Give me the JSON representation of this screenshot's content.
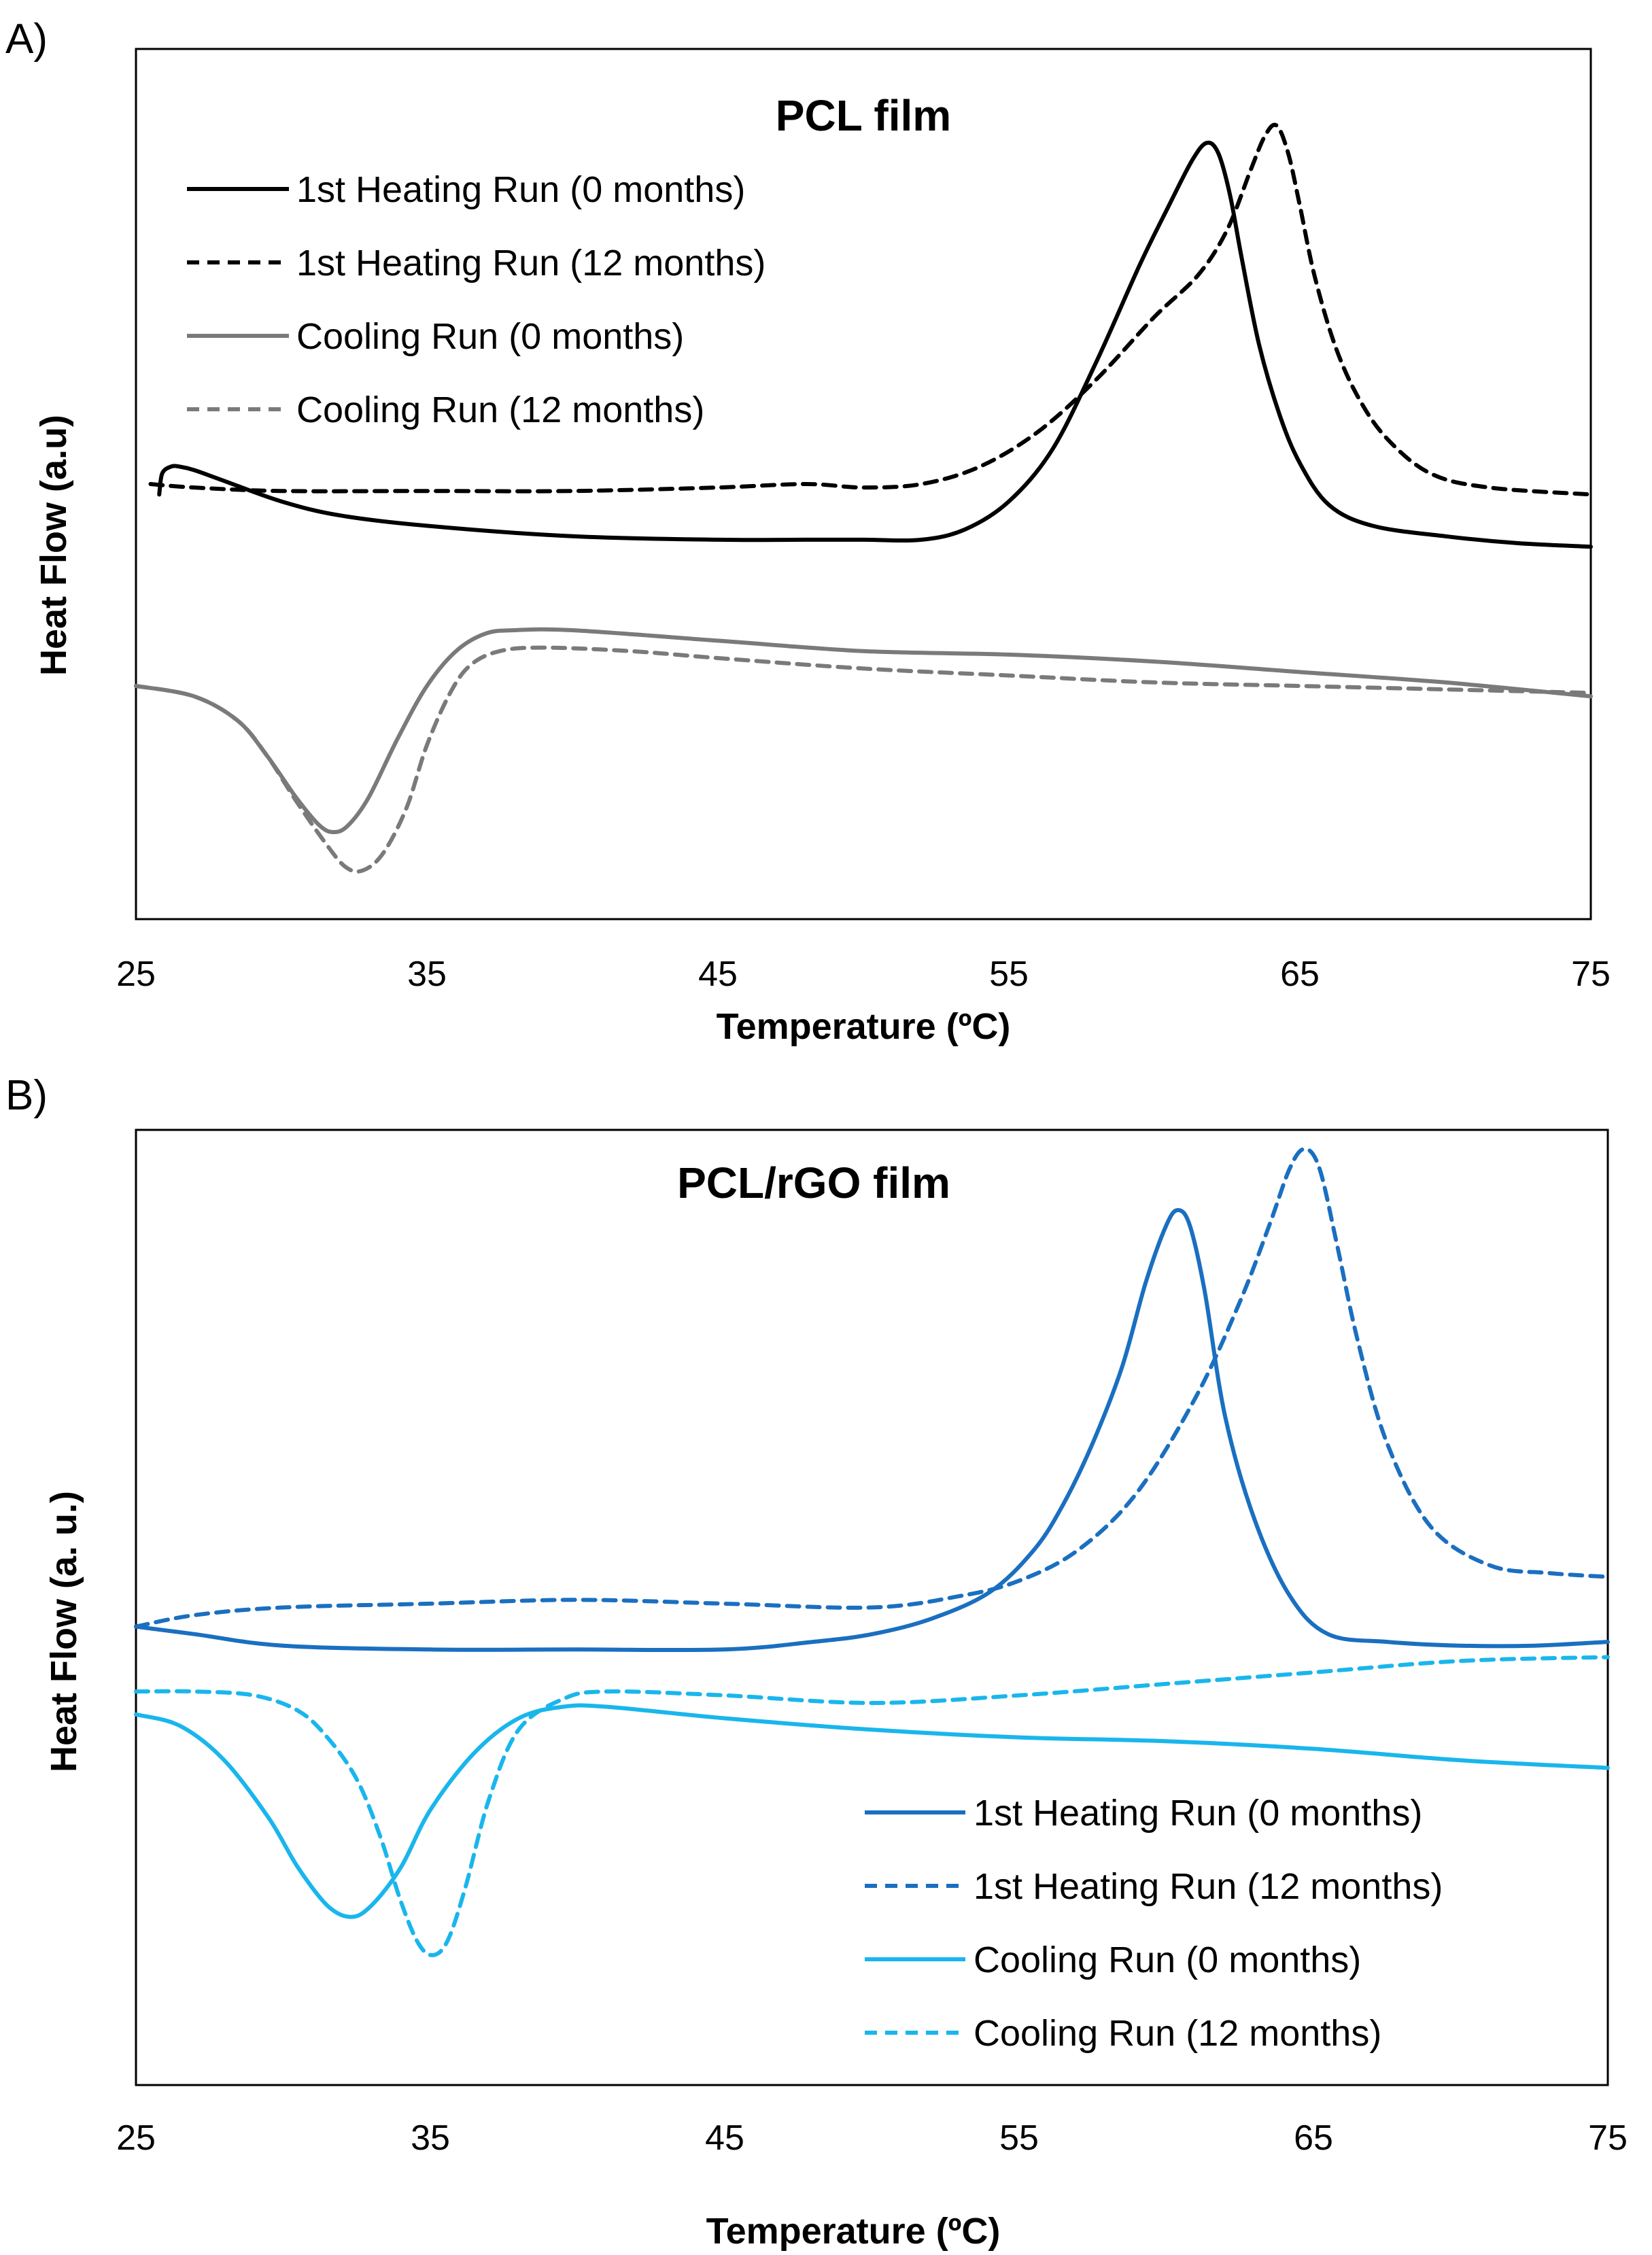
{
  "chart_data": [
    {
      "type": "line",
      "panel_label": "A)",
      "title": "PCL film",
      "xlabel": "Temperature (ºC)",
      "ylabel": "Heat Flow (a.u)",
      "xlim": [
        25,
        75
      ],
      "ylim": [
        -11,
        14
      ],
      "xticks": [
        "25",
        "35",
        "45",
        "55",
        "65",
        "75"
      ],
      "grid": false,
      "legend_position": "top-left",
      "series": [
        {
          "name": "1st Heating Run (0 months)",
          "color": "#000000",
          "dash": "solid",
          "x": [
            25.8,
            25.9,
            26.2,
            26.5,
            27.0,
            28,
            30,
            32,
            35,
            40,
            45,
            48,
            50,
            52,
            53.5,
            55,
            56.5,
            58,
            59.5,
            60.5,
            61.3,
            61.8,
            62.2,
            62.6,
            63.0,
            63.6,
            64.3,
            65.0,
            66.0,
            67.5,
            70,
            72.5,
            75
          ],
          "y": [
            1.2,
            1.8,
            2.0,
            2.0,
            1.9,
            1.6,
            1.0,
            0.6,
            0.3,
            0.0,
            -0.1,
            -0.1,
            -0.1,
            -0.1,
            0.2,
            1.0,
            2.5,
            5.0,
            7.8,
            9.5,
            10.8,
            11.3,
            11.0,
            9.8,
            8.0,
            5.5,
            3.5,
            2.1,
            0.9,
            0.3,
            0.0,
            -0.2,
            -0.3
          ]
        },
        {
          "name": "1st Heating Run (12 months)",
          "color": "#000000",
          "dash": "dashed",
          "x": [
            25.5,
            27,
            30,
            35,
            40,
            45,
            48,
            50,
            52,
            54,
            56,
            58,
            60,
            61.5,
            62.5,
            63.3,
            63.8,
            64.2,
            64.6,
            65.0,
            65.5,
            66.2,
            67.0,
            68.0,
            69.5,
            71.5,
            75
          ],
          "y": [
            1.5,
            1.4,
            1.3,
            1.3,
            1.3,
            1.4,
            1.5,
            1.4,
            1.5,
            2.0,
            3.0,
            4.5,
            6.3,
            7.5,
            8.8,
            10.5,
            11.5,
            11.8,
            11.0,
            9.5,
            7.5,
            5.5,
            4.0,
            2.8,
            1.8,
            1.4,
            1.2
          ]
        },
        {
          "name": "Cooling Run (0 months)",
          "color": "#7a7a7a",
          "dash": "solid",
          "x": [
            25,
            27,
            28.5,
            29.5,
            30.5,
            31.3,
            31.8,
            32.3,
            33,
            34,
            35,
            36,
            37,
            38,
            40,
            45,
            50,
            55,
            60,
            65,
            70,
            75
          ],
          "y": [
            -4.3,
            -4.6,
            -5.3,
            -6.3,
            -7.5,
            -8.3,
            -8.5,
            -8.3,
            -7.5,
            -5.8,
            -4.3,
            -3.3,
            -2.8,
            -2.7,
            -2.7,
            -3.0,
            -3.3,
            -3.4,
            -3.6,
            -3.9,
            -4.2,
            -4.6
          ]
        },
        {
          "name": "Cooling Run (12 months)",
          "color": "#7a7a7a",
          "dash": "dashed",
          "x": [
            25,
            27,
            28.5,
            29.5,
            30.5,
            31.5,
            32.2,
            32.8,
            33.5,
            34.3,
            35,
            35.8,
            36.5,
            37.5,
            39,
            42,
            45,
            50,
            55,
            60,
            65,
            70,
            75
          ],
          "y": [
            -4.3,
            -4.6,
            -5.3,
            -6.3,
            -7.6,
            -8.8,
            -9.5,
            -9.6,
            -9.1,
            -7.8,
            -6.0,
            -4.5,
            -3.7,
            -3.3,
            -3.2,
            -3.3,
            -3.5,
            -3.8,
            -4.0,
            -4.2,
            -4.3,
            -4.4,
            -4.5
          ]
        }
      ]
    },
    {
      "type": "line",
      "panel_label": "B)",
      "title": "PCL/rGO film",
      "xlabel": "Temperature (ºC)",
      "ylabel": "Heat Flow (a. u.)",
      "xlim": [
        25,
        75
      ],
      "ylim": [
        -12,
        13
      ],
      "xticks": [
        "25",
        "35",
        "45",
        "55",
        "65",
        "75"
      ],
      "grid": false,
      "legend_position": "bottom-right",
      "series": [
        {
          "name": "1st Heating Run (0 months)",
          "color": "#1a6fc0",
          "dash": "solid",
          "x": [
            25,
            27,
            30,
            35,
            40,
            45,
            48,
            50,
            52,
            54,
            55.5,
            56.5,
            57.5,
            58.5,
            59.3,
            60.0,
            60.4,
            60.8,
            61.3,
            62.0,
            63.0,
            64.2,
            65.5,
            67.5,
            70,
            72.5,
            75
          ],
          "y": [
            0.0,
            -0.2,
            -0.5,
            -0.6,
            -0.6,
            -0.6,
            -0.4,
            -0.2,
            0.2,
            0.9,
            2.0,
            3.2,
            4.8,
            6.8,
            9.0,
            10.5,
            10.9,
            10.5,
            8.8,
            5.5,
            2.8,
            0.8,
            -0.2,
            -0.4,
            -0.5,
            -0.5,
            -0.4
          ]
        },
        {
          "name": "1st Heating Run (12 months)",
          "color": "#1a6fc0",
          "dash": "dashed",
          "x": [
            25,
            27,
            30,
            35,
            40,
            45,
            50,
            53,
            55,
            57,
            59,
            61,
            62.5,
            63.5,
            64.2,
            64.7,
            65.2,
            65.8,
            66.5,
            67.5,
            69,
            71,
            73,
            75
          ],
          "y": [
            0.0,
            0.3,
            0.5,
            0.6,
            0.7,
            0.6,
            0.5,
            0.8,
            1.2,
            2.0,
            3.5,
            6.0,
            8.5,
            10.5,
            12.0,
            12.5,
            12.0,
            10.0,
            7.5,
            4.8,
            2.6,
            1.6,
            1.4,
            1.3
          ]
        },
        {
          "name": "Cooling Run (0 months)",
          "color": "#19b6ec",
          "dash": "solid",
          "x": [
            25,
            26.5,
            28,
            29.5,
            30.5,
            31.5,
            32.3,
            33,
            34,
            35,
            36.5,
            38,
            39.5,
            41,
            45,
            50,
            55,
            60,
            65,
            70,
            75
          ],
          "y": [
            -2.3,
            -2.6,
            -3.5,
            -5.0,
            -6.3,
            -7.3,
            -7.6,
            -7.3,
            -6.3,
            -4.8,
            -3.3,
            -2.4,
            -2.1,
            -2.1,
            -2.4,
            -2.7,
            -2.9,
            -3.0,
            -3.2,
            -3.5,
            -3.7
          ]
        },
        {
          "name": "Cooling Run (12 months)",
          "color": "#19b6ec",
          "dash": "dashed",
          "x": [
            25,
            27,
            29,
            30.5,
            31.5,
            32.5,
            33.3,
            34,
            34.6,
            35.1,
            35.6,
            36.2,
            37,
            38,
            39.5,
            41,
            45,
            50,
            55,
            60,
            65,
            70,
            75
          ],
          "y": [
            -1.7,
            -1.7,
            -1.8,
            -2.2,
            -2.9,
            -4.0,
            -5.5,
            -7.2,
            -8.3,
            -8.6,
            -8.2,
            -6.8,
            -4.5,
            -2.7,
            -1.9,
            -1.7,
            -1.8,
            -2.0,
            -1.8,
            -1.5,
            -1.2,
            -0.9,
            -0.8
          ]
        }
      ]
    }
  ]
}
